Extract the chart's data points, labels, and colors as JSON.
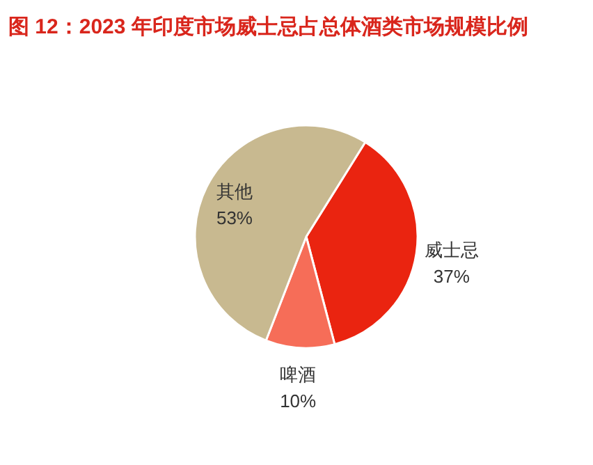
{
  "chart_data": {
    "type": "pie",
    "title": "图 12：2023 年印度市场威士忌占总体酒类市场规模比例",
    "categories": [
      "威士忌",
      "啤酒",
      "其他"
    ],
    "values": [
      37,
      10,
      53
    ],
    "colors": [
      "#ea2410",
      "#f66d58",
      "#c8b990"
    ],
    "value_labels": [
      "37%",
      "10%",
      "53%"
    ]
  }
}
